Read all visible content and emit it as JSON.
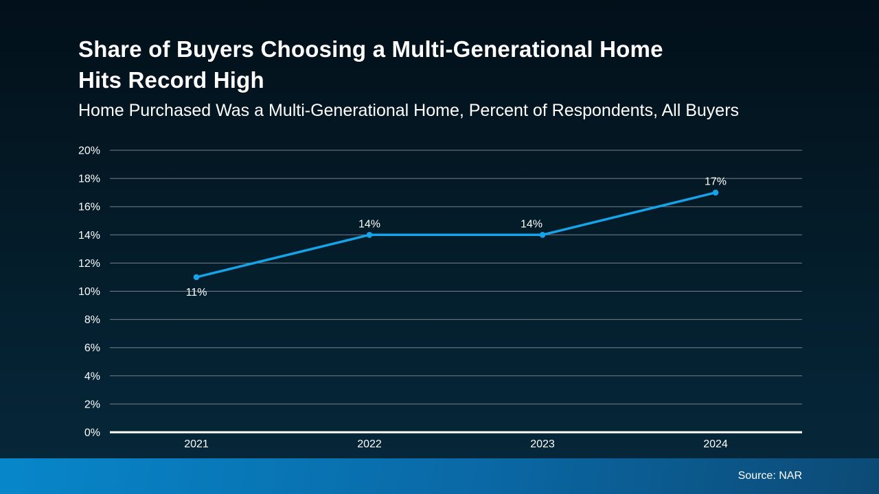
{
  "header": {
    "title_lines": [
      "Share of Buyers Choosing a Multi-Generational Home",
      "Hits Record High"
    ],
    "subtitle": "Home Purchased Was a Multi-Generational Home, Percent of Respondents, All Buyers"
  },
  "footer": {
    "source": "Source: NAR"
  },
  "colors": {
    "accent_blue": "#17a3e8",
    "background_top": "#02101a",
    "background_bottom": "#06293c",
    "footer_gradient_start": "#0787ca",
    "footer_gradient_end": "#0c4a75"
  },
  "chart_data": {
    "type": "line",
    "title": "Home Purchased Was a Multi-Generational Home, Percent of Respondents, All Buyers",
    "categories": [
      "2021",
      "2022",
      "2023",
      "2024"
    ],
    "values": [
      11,
      14,
      14,
      17
    ],
    "data_labels": [
      "11%",
      "14%",
      "14%",
      "17%"
    ],
    "data_label_positions": [
      "below",
      "above",
      "above",
      "above"
    ],
    "xlabel": "",
    "ylabel": "",
    "ylim": [
      0,
      20
    ],
    "y_tick_values": [
      0,
      2,
      4,
      6,
      8,
      10,
      12,
      14,
      16,
      18,
      20
    ],
    "y_tick_labels": [
      "0%",
      "2%",
      "4%",
      "6%",
      "8%",
      "10%",
      "12%",
      "14%",
      "16%",
      "18%",
      "20%"
    ],
    "grid": true,
    "legend": "none",
    "line_color": "#17a3e8",
    "marker": "circle",
    "gridline_color": "#76818a",
    "axis_line_color": "#ffffff",
    "tick_label_color": "#ffffff",
    "data_label_color": "#ffffff",
    "category_label_color": "#ffffff"
  }
}
